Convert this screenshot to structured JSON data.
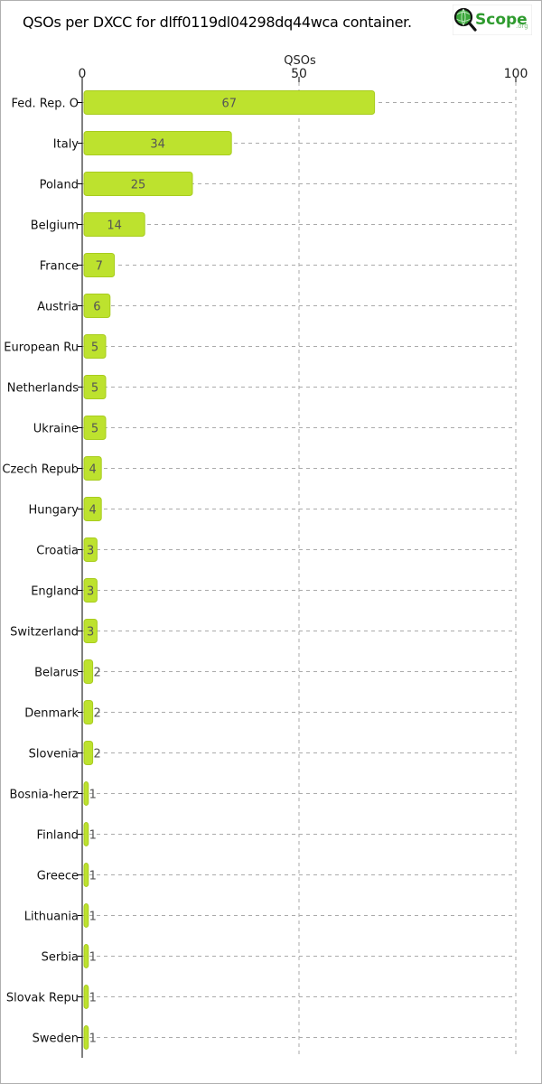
{
  "page": {
    "title": "QSOs per DXCC for dlff0119dl04298dq44wca container."
  },
  "logo": {
    "text_primary": "Scope",
    "text_secondary": ".org",
    "icon": "magnifier-globe-icon",
    "accent_color": "#2e9b2e",
    "ring_color": "#111111"
  },
  "colors": {
    "bar_fill": "#bde22e",
    "bar_stroke": "#a8cc1e",
    "grid": "#aaaaaa",
    "axis": "#000000",
    "label_inside": "#555555",
    "label_outside": "#555555"
  },
  "chart_data": {
    "type": "bar",
    "orientation": "horizontal",
    "title": "QSOs per DXCC for dlff0119dl04298dq44wca container.",
    "xlabel": "QSOs",
    "ylabel": "",
    "xlim": [
      0,
      100
    ],
    "xticks": [
      0,
      50,
      100
    ],
    "xtick_labels": [
      "0",
      "50",
      "100"
    ],
    "grid": true,
    "categories": [
      "Fed. Rep. O",
      "Italy",
      "Poland",
      "Belgium",
      "France",
      "Austria",
      "European Ru",
      "Netherlands",
      "Ukraine",
      "Czech Repub",
      "Hungary",
      "Croatia",
      "England",
      "Switzerland",
      "Belarus",
      "Denmark",
      "Slovenia",
      "Bosnia-herz",
      "Finland",
      "Greece",
      "Lithuania",
      "Serbia",
      "Slovak Repu",
      "Sweden"
    ],
    "values": [
      67,
      34,
      25,
      14,
      7,
      6,
      5,
      5,
      5,
      4,
      4,
      3,
      3,
      3,
      2,
      2,
      2,
      1,
      1,
      1,
      1,
      1,
      1,
      1
    ],
    "value_labels": [
      "67",
      "34",
      "25",
      "14",
      "7",
      "6",
      "5",
      "5",
      "5",
      "4",
      "4",
      "3",
      "3",
      "3",
      "2",
      "2",
      "2",
      "1",
      "1",
      "1",
      "1",
      "1",
      "1",
      "1"
    ]
  }
}
